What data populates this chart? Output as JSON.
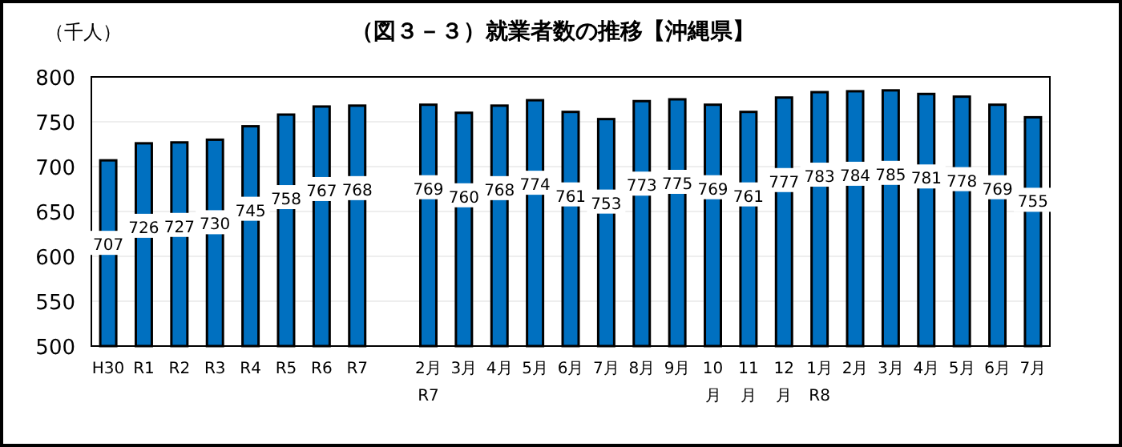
{
  "chart_data": {
    "type": "bar",
    "title": "（図３－３）就業者数の推移【沖縄県】",
    "ylabel": "（千人）",
    "categories": [
      "H30",
      "R1",
      "R2",
      "R3",
      "R4",
      "R5",
      "R6",
      "R7",
      null,
      "2月\nR7",
      "3月",
      "4月",
      "5月",
      "6月",
      "7月",
      "8月",
      "9月",
      "10\n月",
      "11\n月",
      "12\n月",
      "1月\nR8",
      "2月",
      "3月",
      "4月",
      "5月",
      "6月",
      "7月"
    ],
    "values": [
      707,
      726,
      727,
      730,
      745,
      758,
      767,
      768,
      null,
      769,
      760,
      768,
      774,
      761,
      753,
      773,
      775,
      769,
      761,
      777,
      783,
      784,
      785,
      781,
      778,
      769,
      755
    ],
    "color": "#0070c0",
    "ylim": [
      500,
      800
    ],
    "yticks": [
      500,
      550,
      600,
      650,
      700,
      750,
      800
    ],
    "grid": "y",
    "data_labels": true
  }
}
